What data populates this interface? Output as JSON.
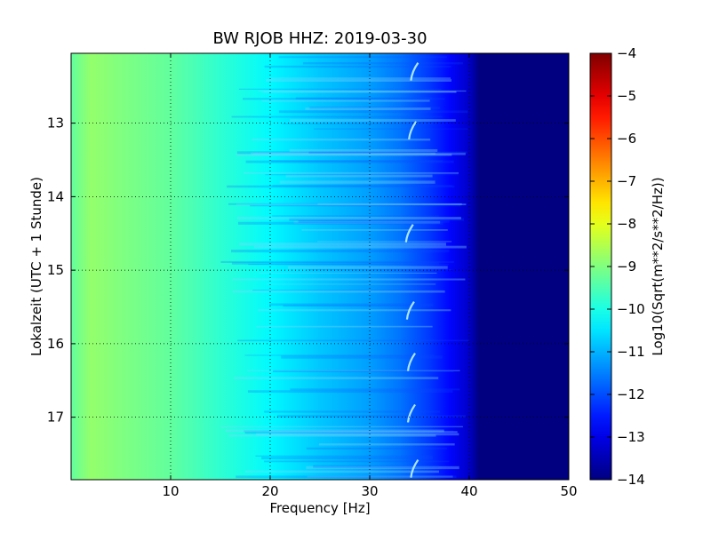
{
  "chart_data": {
    "type": "heatmap",
    "title": "BW RJOB HHZ: 2019-03-30",
    "xlabel": "Frequency [Hz]",
    "ylabel": "Lokalzeit (UTC + 1 Stunde)",
    "colorbar_label": "Log10(Sqrt(m**2/s**2/Hz))",
    "xlim": [
      0,
      50
    ],
    "ylim": [
      17.85,
      12.05
    ],
    "xticks": [
      10,
      20,
      30,
      40,
      50
    ],
    "yticks": [
      13,
      14,
      15,
      16,
      17
    ],
    "colorbar_range": [
      -14,
      -4
    ],
    "colorbar_ticks": [
      -4,
      -5,
      -6,
      -7,
      -8,
      -9,
      -10,
      -11,
      -12,
      -13,
      -14
    ],
    "colormap": "jet",
    "grid": true,
    "spectrum_profile": [
      {
        "frequency": 0,
        "value": -9.3
      },
      {
        "frequency": 2,
        "value": -8.8
      },
      {
        "frequency": 5,
        "value": -9.0
      },
      {
        "frequency": 10,
        "value": -9.3
      },
      {
        "frequency": 15,
        "value": -9.8
      },
      {
        "frequency": 20,
        "value": -10.3
      },
      {
        "frequency": 25,
        "value": -10.8
      },
      {
        "frequency": 30,
        "value": -11.2
      },
      {
        "frequency": 33,
        "value": -11.6
      },
      {
        "frequency": 36,
        "value": -12.2
      },
      {
        "frequency": 38,
        "value": -12.7
      },
      {
        "frequency": 40,
        "value": -13.3
      },
      {
        "frequency": 41,
        "value": -14.0
      },
      {
        "frequency": 50,
        "value": -14.0
      }
    ],
    "tonal_line_events": [
      {
        "frequency": 34.5,
        "time": 12.3
      },
      {
        "frequency": 34.3,
        "time": 13.1
      },
      {
        "frequency": 34.0,
        "time": 14.5
      },
      {
        "frequency": 34.1,
        "time": 15.55
      },
      {
        "frequency": 34.2,
        "time": 16.25
      },
      {
        "frequency": 34.2,
        "time": 16.95
      },
      {
        "frequency": 34.5,
        "time": 17.7
      }
    ]
  }
}
